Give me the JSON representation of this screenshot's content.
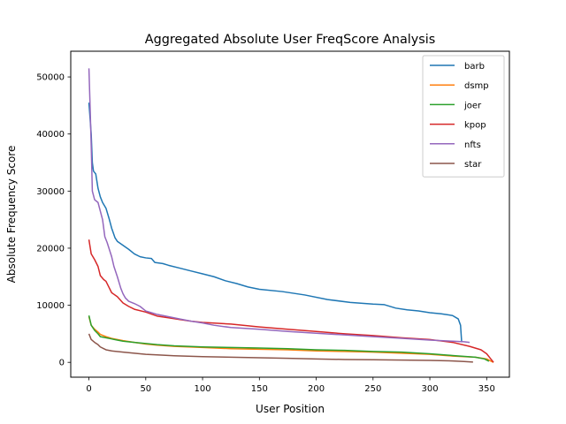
{
  "chart_data": {
    "type": "line",
    "title": "Aggregated Absolute User FreqScore Analysis",
    "xlabel": "User Position",
    "ylabel": "Absolute Frequency Score",
    "xlim": [
      -16,
      370
    ],
    "ylim": [
      -2600,
      54500
    ],
    "xticks": [
      0,
      50,
      100,
      150,
      200,
      250,
      300,
      350
    ],
    "yticks": [
      0,
      10000,
      20000,
      30000,
      40000,
      50000
    ],
    "grid": false,
    "legend_position": "top-right",
    "series": [
      {
        "name": "barb",
        "color": "#1f77b4",
        "points": [
          [
            0,
            45500
          ],
          [
            2,
            40000
          ],
          [
            3,
            35000
          ],
          [
            4,
            33500
          ],
          [
            6,
            33000
          ],
          [
            8,
            30500
          ],
          [
            10,
            29000
          ],
          [
            12,
            28000
          ],
          [
            15,
            27000
          ],
          [
            18,
            25000
          ],
          [
            20,
            23500
          ],
          [
            23,
            21800
          ],
          [
            25,
            21200
          ],
          [
            30,
            20500
          ],
          [
            35,
            19800
          ],
          [
            40,
            19000
          ],
          [
            45,
            18500
          ],
          [
            50,
            18300
          ],
          [
            55,
            18200
          ],
          [
            58,
            17500
          ],
          [
            65,
            17300
          ],
          [
            70,
            17000
          ],
          [
            80,
            16500
          ],
          [
            90,
            16000
          ],
          [
            100,
            15500
          ],
          [
            110,
            15000
          ],
          [
            120,
            14300
          ],
          [
            130,
            13800
          ],
          [
            140,
            13200
          ],
          [
            150,
            12800
          ],
          [
            170,
            12400
          ],
          [
            190,
            11800
          ],
          [
            210,
            11000
          ],
          [
            230,
            10500
          ],
          [
            250,
            10200
          ],
          [
            260,
            10100
          ],
          [
            270,
            9500
          ],
          [
            280,
            9200
          ],
          [
            290,
            9000
          ],
          [
            300,
            8700
          ],
          [
            310,
            8500
          ],
          [
            320,
            8200
          ],
          [
            325,
            7600
          ],
          [
            327,
            6500
          ],
          [
            328,
            3500
          ]
        ]
      },
      {
        "name": "dsmp",
        "color": "#ff7f0e",
        "points": [
          [
            0,
            8000
          ],
          [
            2,
            6500
          ],
          [
            5,
            5800
          ],
          [
            8,
            5300
          ],
          [
            10,
            4900
          ],
          [
            15,
            4500
          ],
          [
            20,
            4200
          ],
          [
            25,
            4000
          ],
          [
            30,
            3800
          ],
          [
            40,
            3500
          ],
          [
            50,
            3200
          ],
          [
            60,
            3000
          ],
          [
            75,
            2800
          ],
          [
            100,
            2600
          ],
          [
            125,
            2400
          ],
          [
            150,
            2300
          ],
          [
            175,
            2200
          ],
          [
            200,
            2000
          ],
          [
            225,
            1900
          ],
          [
            250,
            1800
          ],
          [
            275,
            1600
          ],
          [
            300,
            1400
          ],
          [
            320,
            1100
          ],
          [
            340,
            900
          ],
          [
            350,
            600
          ],
          [
            354,
            200
          ],
          [
            356,
            0
          ]
        ]
      },
      {
        "name": "joer",
        "color": "#2ca02c",
        "points": [
          [
            0,
            8200
          ],
          [
            2,
            6500
          ],
          [
            5,
            5600
          ],
          [
            8,
            5000
          ],
          [
            10,
            4500
          ],
          [
            15,
            4300
          ],
          [
            20,
            4100
          ],
          [
            25,
            3900
          ],
          [
            30,
            3700
          ],
          [
            40,
            3500
          ],
          [
            50,
            3300
          ],
          [
            60,
            3100
          ],
          [
            75,
            2900
          ],
          [
            100,
            2700
          ],
          [
            125,
            2600
          ],
          [
            150,
            2500
          ],
          [
            175,
            2400
          ],
          [
            200,
            2200
          ],
          [
            225,
            2100
          ],
          [
            250,
            1900
          ],
          [
            275,
            1800
          ],
          [
            300,
            1500
          ],
          [
            320,
            1200
          ],
          [
            340,
            900
          ],
          [
            348,
            600
          ],
          [
            352,
            200
          ]
        ]
      },
      {
        "name": "kpop",
        "color": "#d62728",
        "points": [
          [
            0,
            21500
          ],
          [
            2,
            19000
          ],
          [
            5,
            18000
          ],
          [
            8,
            16800
          ],
          [
            10,
            15200
          ],
          [
            13,
            14500
          ],
          [
            15,
            14200
          ],
          [
            18,
            13000
          ],
          [
            20,
            12200
          ],
          [
            25,
            11500
          ],
          [
            30,
            10400
          ],
          [
            35,
            9800
          ],
          [
            40,
            9300
          ],
          [
            50,
            8800
          ],
          [
            60,
            8100
          ],
          [
            70,
            7800
          ],
          [
            80,
            7500
          ],
          [
            90,
            7200
          ],
          [
            100,
            7000
          ],
          [
            125,
            6700
          ],
          [
            150,
            6200
          ],
          [
            175,
            5800
          ],
          [
            200,
            5400
          ],
          [
            225,
            5000
          ],
          [
            250,
            4700
          ],
          [
            275,
            4300
          ],
          [
            300,
            4000
          ],
          [
            320,
            3500
          ],
          [
            335,
            2800
          ],
          [
            345,
            2200
          ],
          [
            350,
            1500
          ],
          [
            354,
            500
          ],
          [
            356,
            0
          ]
        ]
      },
      {
        "name": "nfts",
        "color": "#9467bd",
        "points": [
          [
            0,
            51500
          ],
          [
            1,
            45000
          ],
          [
            2,
            38000
          ],
          [
            3,
            30000
          ],
          [
            5,
            28500
          ],
          [
            8,
            28000
          ],
          [
            10,
            26500
          ],
          [
            12,
            25000
          ],
          [
            14,
            22000
          ],
          [
            16,
            21000
          ],
          [
            20,
            18500
          ],
          [
            22,
            16800
          ],
          [
            25,
            15000
          ],
          [
            28,
            13000
          ],
          [
            30,
            12000
          ],
          [
            32,
            11300
          ],
          [
            35,
            10700
          ],
          [
            40,
            10300
          ],
          [
            45,
            9800
          ],
          [
            50,
            9000
          ],
          [
            55,
            8700
          ],
          [
            60,
            8400
          ],
          [
            70,
            8000
          ],
          [
            80,
            7600
          ],
          [
            90,
            7200
          ],
          [
            100,
            6900
          ],
          [
            110,
            6500
          ],
          [
            125,
            6100
          ],
          [
            150,
            5800
          ],
          [
            175,
            5400
          ],
          [
            200,
            5100
          ],
          [
            225,
            4800
          ],
          [
            250,
            4500
          ],
          [
            275,
            4200
          ],
          [
            300,
            3900
          ],
          [
            320,
            3700
          ],
          [
            330,
            3600
          ],
          [
            335,
            3500
          ]
        ]
      },
      {
        "name": "star",
        "color": "#8c564b",
        "points": [
          [
            0,
            5000
          ],
          [
            2,
            4000
          ],
          [
            5,
            3500
          ],
          [
            8,
            3100
          ],
          [
            10,
            2700
          ],
          [
            13,
            2400
          ],
          [
            15,
            2200
          ],
          [
            20,
            2000
          ],
          [
            30,
            1800
          ],
          [
            40,
            1600
          ],
          [
            50,
            1400
          ],
          [
            60,
            1300
          ],
          [
            75,
            1150
          ],
          [
            100,
            1000
          ],
          [
            125,
            900
          ],
          [
            150,
            800
          ],
          [
            175,
            700
          ],
          [
            200,
            600
          ],
          [
            225,
            500
          ],
          [
            250,
            450
          ],
          [
            275,
            400
          ],
          [
            300,
            350
          ],
          [
            320,
            250
          ],
          [
            330,
            150
          ],
          [
            338,
            50
          ]
        ]
      }
    ]
  }
}
